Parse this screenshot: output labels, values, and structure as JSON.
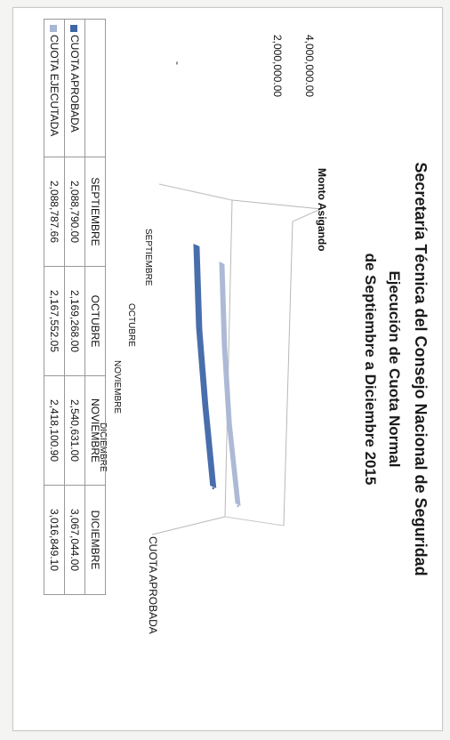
{
  "titles": {
    "line1": "Secretaría Técnica del Consejo Nacional de Seguridad",
    "line2": "Ejecución de Cuota Normal",
    "line3": "de Septiembre a Diciembre 2015"
  },
  "colors": {
    "aprobada": "#3f66a8",
    "ejecutada": "#a9b6d4"
  },
  "chart_data": {
    "type": "line",
    "title": "Secretaría Técnica del Consejo Nacional de Seguridad Ejecución de Cuota Normal de Septiembre a Diciembre 2015",
    "ylabel": "Monto Asigando",
    "yticks": [
      "4,000,000.00",
      "2,000,000.00",
      "-"
    ],
    "ylim": [
      0,
      4000000
    ],
    "categories": [
      "SEPTIEMBRE",
      "OCTUBRE",
      "NOVIEMBRE",
      "DICIEMBRE"
    ],
    "depth_label": "CUOTA APROBADA",
    "grid": false,
    "legend": "data table",
    "series": [
      {
        "name": "CUOTA APROBADA",
        "values": [
          2088790.0,
          2169268.0,
          2540631.0,
          3067044.0
        ]
      },
      {
        "name": "CUOTA EJECUTADA",
        "values": [
          2088787.66,
          2167552.05,
          2418100.9,
          3016849.1
        ]
      }
    ]
  },
  "table": {
    "headers": [
      "SEPTIEMBRE",
      "OCTUBRE",
      "NOVIEMBRE",
      "DICIEMBRE"
    ],
    "rows": [
      {
        "label": "CUOTA APROBADA",
        "cells": [
          "2,088,790.00",
          "2,169,268.00",
          "2,540,631.00",
          "3,067,044.00"
        ]
      },
      {
        "label": "CUOTA EJECUTADA",
        "cells": [
          "2,088,787.66",
          "2,167,552.05",
          "2,418,100.90",
          "3,016,849.10"
        ]
      }
    ]
  }
}
